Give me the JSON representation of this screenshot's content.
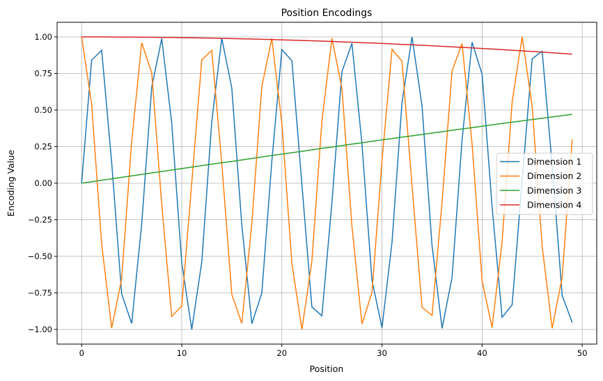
{
  "chart_data": {
    "type": "line",
    "title": "Position Encodings",
    "xlabel": "Position",
    "ylabel": "Encoding Value",
    "xlim": [
      -2.45,
      51.45
    ],
    "ylim": [
      -1.1,
      1.1
    ],
    "xticks": [
      0,
      10,
      20,
      30,
      40,
      50
    ],
    "xtick_labels": [
      "0",
      "10",
      "20",
      "30",
      "40",
      "50"
    ],
    "yticks": [
      1.0,
      0.75,
      0.5,
      0.25,
      0.0,
      -0.25,
      -0.5,
      -0.75,
      -1.0
    ],
    "ytick_labels": [
      "1.00",
      "0.75",
      "0.50",
      "0.25",
      "0.00",
      "−0.25",
      "−0.50",
      "−0.75",
      "−1.00"
    ],
    "grid": true,
    "legend_position": "center-right",
    "x": [
      0,
      1,
      2,
      3,
      4,
      5,
      6,
      7,
      8,
      9,
      10,
      11,
      12,
      13,
      14,
      15,
      16,
      17,
      18,
      19,
      20,
      21,
      22,
      23,
      24,
      25,
      26,
      27,
      28,
      29,
      30,
      31,
      32,
      33,
      34,
      35,
      36,
      37,
      38,
      39,
      40,
      41,
      42,
      43,
      44,
      45,
      46,
      47,
      48,
      49
    ],
    "series": [
      {
        "name": "Dimension 1",
        "color": "#1f77b4",
        "values": [
          0,
          0.841,
          0.909,
          0.141,
          -0.757,
          -0.959,
          -0.279,
          0.657,
          0.989,
          0.412,
          -0.544,
          -1.0,
          -0.537,
          0.42,
          0.991,
          0.65,
          -0.288,
          -0.961,
          -0.751,
          0.15,
          0.913,
          0.837,
          -0.009,
          -0.846,
          -0.906,
          -0.132,
          0.763,
          0.956,
          0.271,
          -0.664,
          -0.988,
          -0.404,
          0.551,
          1.0,
          0.529,
          -0.428,
          -0.992,
          -0.644,
          0.296,
          0.964,
          0.745,
          -0.159,
          -0.917,
          -0.832,
          0.018,
          0.851,
          0.902,
          0.124,
          -0.768,
          -0.954
        ]
      },
      {
        "name": "Dimension 2",
        "color": "#ff7f0e",
        "values": [
          1,
          0.54,
          -0.416,
          -0.99,
          -0.654,
          0.284,
          0.96,
          0.754,
          -0.146,
          -0.911,
          -0.839,
          0.004,
          0.844,
          0.907,
          0.137,
          -0.76,
          -0.958,
          -0.275,
          0.66,
          0.989,
          0.408,
          -0.548,
          -1.0,
          -0.533,
          0.424,
          0.991,
          0.647,
          -0.292,
          -0.963,
          -0.748,
          0.154,
          0.915,
          0.834,
          -0.013,
          -0.849,
          -0.904,
          -0.128,
          0.766,
          0.955,
          0.267,
          -0.667,
          -0.987,
          -0.4,
          0.556,
          1.0,
          0.525,
          -0.432,
          -0.992,
          -0.641,
          0.3
        ]
      },
      {
        "name": "Dimension 3",
        "color": "#2ca02c",
        "values": [
          0,
          0.01,
          0.02,
          0.03,
          0.04,
          0.05,
          0.06,
          0.07,
          0.08,
          0.09,
          0.0998,
          0.11,
          0.12,
          0.13,
          0.14,
          0.149,
          0.159,
          0.169,
          0.179,
          0.189,
          0.199,
          0.208,
          0.218,
          0.228,
          0.238,
          0.247,
          0.257,
          0.267,
          0.276,
          0.286,
          0.296,
          0.305,
          0.315,
          0.324,
          0.333,
          0.343,
          0.352,
          0.362,
          0.371,
          0.38,
          0.389,
          0.399,
          0.408,
          0.417,
          0.426,
          0.435,
          0.444,
          0.453,
          0.462,
          0.471
        ]
      },
      {
        "name": "Dimension 4",
        "color": "#d62728",
        "values": [
          1,
          1.0,
          0.9998,
          0.9996,
          0.9992,
          0.9988,
          0.9982,
          0.9976,
          0.9968,
          0.996,
          0.995,
          0.994,
          0.9928,
          0.9916,
          0.9902,
          0.9888,
          0.9872,
          0.9856,
          0.9838,
          0.982,
          0.9801,
          0.978,
          0.9759,
          0.9737,
          0.9713,
          0.9689,
          0.9664,
          0.9638,
          0.9611,
          0.9582,
          0.9553,
          0.9523,
          0.9492,
          0.946,
          0.9428,
          0.9394,
          0.9359,
          0.9323,
          0.9287,
          0.9249,
          0.9211,
          0.9171,
          0.9131,
          0.909,
          0.9048,
          0.9004,
          0.8961,
          0.8916,
          0.887,
          0.8823
        ]
      }
    ]
  }
}
